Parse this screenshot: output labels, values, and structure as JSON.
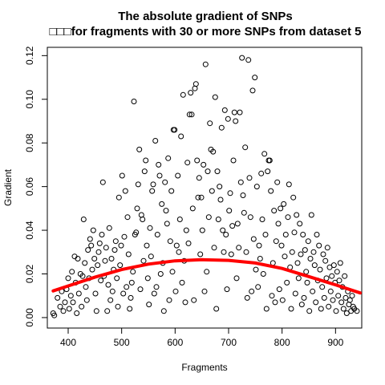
{
  "chart_data": {
    "type": "scatter",
    "title": "The absolute gradient of SNPs",
    "subtitle": "□□□for fragments with 30 or more SNPs from dataset 5",
    "xlabel": "Fragments",
    "ylabel": "Gradient",
    "xlim": [
      361,
      949
    ],
    "ylim": [
      -0.0048,
      0.1238
    ],
    "x_ticks": [
      400,
      500,
      600,
      700,
      800,
      900
    ],
    "x_tick_labels": [
      "400",
      "500",
      "600",
      "700",
      "800",
      "900"
    ],
    "y_ticks": [
      0.0,
      0.02,
      0.04,
      0.06,
      0.08,
      0.1,
      0.12
    ],
    "y_tick_labels": [
      "0.00",
      "0.02",
      "0.04",
      "0.06",
      "0.08",
      "0.10",
      "0.12"
    ],
    "grid": false,
    "legend": "none",
    "marker": "open-circle",
    "marker_color": "#000000",
    "series": [
      {
        "points": [
          [
            372,
            0.002
          ],
          [
            374,
            0.001
          ],
          [
            380,
            0.009
          ],
          [
            385,
            0.005
          ],
          [
            388,
            0.012
          ],
          [
            391,
            0.003
          ],
          [
            394,
            0.007
          ],
          [
            397,
            0.013
          ],
          [
            400,
            0.018
          ],
          [
            402,
            0.004
          ],
          [
            405,
            0.01
          ],
          [
            407,
            0.021
          ],
          [
            409,
            0.007
          ],
          [
            412,
            0.028
          ],
          [
            414,
            0.016
          ],
          [
            416,
            0.002
          ],
          [
            418,
            0.027
          ],
          [
            420,
            0.011
          ],
          [
            423,
            0.02
          ],
          [
            425,
            0.005
          ],
          [
            427,
            0.019
          ],
          [
            429,
            0.045
          ],
          [
            431,
            0.025
          ],
          [
            433,
            0.014
          ],
          [
            435,
            0.008
          ],
          [
            437,
            0.031
          ],
          [
            439,
            0.018
          ],
          [
            441,
            0.036
          ],
          [
            443,
            0.033
          ],
          [
            445,
            0.022
          ],
          [
            447,
            0.04
          ],
          [
            449,
            0.027
          ],
          [
            451,
            0.011
          ],
          [
            453,
            0.003
          ],
          [
            455,
            0.024
          ],
          [
            457,
            0.03
          ],
          [
            459,
            0.034
          ],
          [
            461,
            0.017
          ],
          [
            463,
            0.038
          ],
          [
            465,
            0.062
          ],
          [
            467,
            0.019
          ],
          [
            469,
            0.026
          ],
          [
            471,
            0.032
          ],
          [
            473,
            0.003
          ],
          [
            475,
            0.015
          ],
          [
            477,
            0.041
          ],
          [
            479,
            0.008
          ],
          [
            481,
            0.027
          ],
          [
            483,
            0.012
          ],
          [
            485,
            0.022
          ],
          [
            487,
            0.031
          ],
          [
            489,
            0.035
          ],
          [
            491,
            0.018
          ],
          [
            493,
            0.005
          ],
          [
            495,
            0.055
          ],
          [
            497,
            0.024
          ],
          [
            499,
            0.033
          ],
          [
            501,
            0.065
          ],
          [
            503,
            0.011
          ],
          [
            505,
            0.037
          ],
          [
            507,
            0.058
          ],
          [
            509,
            0.014
          ],
          [
            511,
            0.046
          ],
          [
            513,
            0.029
          ],
          [
            515,
            0.004
          ],
          [
            517,
            0.009
          ],
          [
            519,
            0.016
          ],
          [
            521,
            0.021
          ],
          [
            523,
            0.099
          ],
          [
            525,
            0.038
          ],
          [
            527,
            0.039
          ],
          [
            529,
            0.05
          ],
          [
            531,
            0.061
          ],
          [
            533,
            0.077
          ],
          [
            535,
            0.013
          ],
          [
            537,
            0.047
          ],
          [
            539,
            0.045
          ],
          [
            541,
            0.026
          ],
          [
            543,
            0.067
          ],
          [
            545,
            0.072
          ],
          [
            547,
            0.033
          ],
          [
            549,
            0.018
          ],
          [
            551,
            0.006
          ],
          [
            553,
            0.041
          ],
          [
            555,
            0.028
          ],
          [
            557,
            0.058
          ],
          [
            559,
            0.061
          ],
          [
            561,
            0.011
          ],
          [
            563,
            0.081
          ],
          [
            565,
            0.014
          ],
          [
            567,
            0.038
          ],
          [
            569,
            0.07
          ],
          [
            571,
            0.065
          ],
          [
            573,
            0.02
          ],
          [
            575,
            0.052
          ],
          [
            577,
            0.025
          ],
          [
            579,
            0.003
          ],
          [
            581,
            0.062
          ],
          [
            583,
            0.049
          ],
          [
            585,
            0.043
          ],
          [
            587,
            0.073
          ],
          [
            589,
            0.008
          ],
          [
            591,
            0.035
          ],
          [
            593,
            0.058
          ],
          [
            595,
            0.021
          ],
          [
            597,
            0.086
          ],
          [
            599,
            0.086
          ],
          [
            601,
            0.012
          ],
          [
            603,
            0.033
          ],
          [
            605,
            0.065
          ],
          [
            607,
            0.03
          ],
          [
            609,
            0.045
          ],
          [
            611,
            0.083
          ],
          [
            613,
            0.016
          ],
          [
            615,
            0.102
          ],
          [
            617,
            0.026
          ],
          [
            619,
            0.007
          ],
          [
            621,
            0.04
          ],
          [
            623,
            0.071
          ],
          [
            625,
            0.034
          ],
          [
            627,
            0.093
          ],
          [
            629,
            0.103
          ],
          [
            631,
            0.093
          ],
          [
            633,
            0.05
          ],
          [
            635,
            0.008
          ],
          [
            637,
            0.105
          ],
          [
            639,
            0.107
          ],
          [
            641,
            0.072
          ],
          [
            643,
            0.055
          ],
          [
            645,
            0.064
          ],
          [
            647,
            0.029
          ],
          [
            649,
            0.055
          ],
          [
            651,
            0.04
          ],
          [
            653,
            0.07
          ],
          [
            655,
            0.012
          ],
          [
            657,
            0.116
          ],
          [
            659,
            0.021
          ],
          [
            661,
            0.067
          ],
          [
            663,
            0.046
          ],
          [
            665,
            0.089
          ],
          [
            667,
            0.077
          ],
          [
            669,
            0.058
          ],
          [
            671,
            0.076
          ],
          [
            673,
            0.032
          ],
          [
            675,
            0.101
          ],
          [
            677,
            0.004
          ],
          [
            679,
            0.067
          ],
          [
            681,
            0.045
          ],
          [
            683,
            0.06
          ],
          [
            685,
            0.054
          ],
          [
            687,
            0.087
          ],
          [
            689,
            0.04
          ],
          [
            691,
            0.03
          ],
          [
            693,
            0.095
          ],
          [
            695,
            0.038
          ],
          [
            697,
            0.013
          ],
          [
            699,
            0.091
          ],
          [
            701,
            0.049
          ],
          [
            703,
            0.057
          ],
          [
            705,
            0.029
          ],
          [
            707,
            0.042
          ],
          [
            709,
            0.072
          ],
          [
            711,
            0.094
          ],
          [
            713,
            0.09
          ],
          [
            715,
            0.018
          ],
          [
            717,
            0.043
          ],
          [
            719,
            0.032
          ],
          [
            721,
            0.094
          ],
          [
            723,
            0.062
          ],
          [
            725,
            0.119
          ],
          [
            727,
            0.056
          ],
          [
            729,
            0.048
          ],
          [
            731,
            0.078
          ],
          [
            733,
            0.03
          ],
          [
            735,
            0.009
          ],
          [
            737,
            0.118
          ],
          [
            739,
            0.064
          ],
          [
            741,
            0.046
          ],
          [
            743,
            0.012
          ],
          [
            745,
            0.104
          ],
          [
            747,
            0.036
          ],
          [
            749,
            0.11
          ],
          [
            751,
            0.022
          ],
          [
            753,
            0.06
          ],
          [
            755,
            0.014
          ],
          [
            757,
            0.033
          ],
          [
            759,
            0.027
          ],
          [
            761,
            0.066
          ],
          [
            763,
            0.045
          ],
          [
            765,
            0.02
          ],
          [
            767,
            0.075
          ],
          [
            769,
            0.038
          ],
          [
            771,
            0.004
          ],
          [
            773,
            0.067
          ],
          [
            775,
            0.072
          ],
          [
            777,
            0.072
          ],
          [
            779,
            0.058
          ],
          [
            781,
            0.01
          ],
          [
            783,
            0.025
          ],
          [
            785,
            0.049
          ],
          [
            787,
            0.007
          ],
          [
            789,
            0.035
          ],
          [
            791,
            0.062
          ],
          [
            793,
            0.043
          ],
          [
            795,
            0.013
          ],
          [
            797,
            0.05
          ],
          [
            799,
            0.033
          ],
          [
            801,
            0.008
          ],
          [
            803,
            0.052
          ],
          [
            805,
            0.028
          ],
          [
            807,
            0.038
          ],
          [
            809,
            0.016
          ],
          [
            811,
            0.046
          ],
          [
            813,
            0.061
          ],
          [
            815,
            0.023
          ],
          [
            817,
            0.004
          ],
          [
            819,
            0.03
          ],
          [
            821,
            0.055
          ],
          [
            823,
            0.039
          ],
          [
            825,
            0.011
          ],
          [
            827,
            0.047
          ],
          [
            829,
            0.025
          ],
          [
            831,
            0.018
          ],
          [
            833,
            0.043
          ],
          [
            835,
            0.029
          ],
          [
            837,
            0.006
          ],
          [
            839,
            0.038
          ],
          [
            841,
            0.009
          ],
          [
            843,
            0.031
          ],
          [
            845,
            0.021
          ],
          [
            847,
            0.016
          ],
          [
            849,
            0.035
          ],
          [
            851,
            0.003
          ],
          [
            853,
            0.027
          ],
          [
            855,
            0.047
          ],
          [
            857,
            0.012
          ],
          [
            859,
            0.03
          ],
          [
            861,
            0.024
          ],
          [
            863,
            0.007
          ],
          [
            865,
            0.038
          ],
          [
            867,
            0.017
          ],
          [
            869,
            0.033
          ],
          [
            871,
            0.022
          ],
          [
            873,
            0.004
          ],
          [
            875,
            0.014
          ],
          [
            877,
            0.029
          ],
          [
            879,
            0.009
          ],
          [
            881,
            0.026
          ],
          [
            883,
            0.018
          ],
          [
            885,
            0.032
          ],
          [
            887,
            0.005
          ],
          [
            889,
            0.023
          ],
          [
            891,
            0.012
          ],
          [
            893,
            0.019
          ],
          [
            895,
            0.008
          ],
          [
            897,
            0.024
          ],
          [
            899,
            0.016
          ],
          [
            901,
            0.003
          ],
          [
            903,
            0.021
          ],
          [
            905,
            0.01
          ],
          [
            907,
            0.017
          ],
          [
            909,
            0.025
          ],
          [
            911,
            0.007
          ],
          [
            913,
            0.014
          ],
          [
            915,
            0.004
          ],
          [
            917,
            0.019
          ],
          [
            919,
            0.009
          ],
          [
            921,
            0.002
          ],
          [
            923,
            0.012
          ],
          [
            925,
            0.006
          ],
          [
            927,
            0.008
          ],
          [
            929,
            0.003
          ],
          [
            931,
            0.01
          ],
          [
            933,
            0.005
          ],
          [
            935,
            0.004
          ],
          [
            940,
            0.003
          ]
        ]
      }
    ],
    "trend_line": {
      "color": "#ff0000",
      "points": [
        [
          372,
          0.0122
        ],
        [
          400,
          0.0145
        ],
        [
          450,
          0.0185
        ],
        [
          500,
          0.022
        ],
        [
          550,
          0.0245
        ],
        [
          600,
          0.026
        ],
        [
          650,
          0.0265
        ],
        [
          700,
          0.0262
        ],
        [
          750,
          0.025
        ],
        [
          800,
          0.0225
        ],
        [
          850,
          0.0188
        ],
        [
          900,
          0.015
        ],
        [
          946,
          0.0113
        ]
      ]
    }
  }
}
